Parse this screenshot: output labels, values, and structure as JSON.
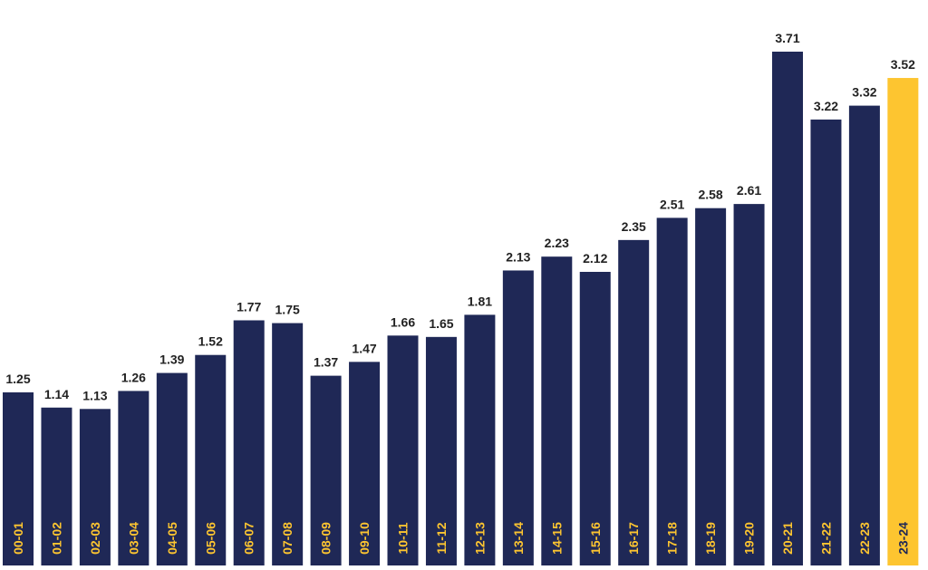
{
  "colors": {
    "bar": "#1f2856",
    "highlight": "#fdc530",
    "category_text_on_bar": "#fdc530",
    "category_text_on_highlight": "#1f2856",
    "value_text": "#222222"
  },
  "chart_data": {
    "type": "bar",
    "title": "",
    "xlabel": "",
    "ylabel": "",
    "categories": [
      "00-01",
      "01-02",
      "02-03",
      "03-04",
      "04-05",
      "05-06",
      "06-07",
      "07-08",
      "08-09",
      "09-10",
      "10-11",
      "11-12",
      "12-13",
      "13-14",
      "14-15",
      "15-16",
      "16-17",
      "17-18",
      "18-19",
      "19-20",
      "20-21",
      "21-22",
      "22-23",
      "23-24"
    ],
    "values": [
      1.25,
      1.14,
      1.13,
      1.26,
      1.39,
      1.52,
      1.77,
      1.75,
      1.37,
      1.47,
      1.66,
      1.65,
      1.81,
      2.13,
      2.23,
      2.12,
      2.35,
      2.51,
      2.58,
      2.61,
      3.71,
      3.22,
      3.32,
      3.52
    ],
    "value_labels": [
      "1.25",
      "1.14",
      "1.13",
      "1.26",
      "1.39",
      "1.52",
      "1.77",
      "1.75",
      "1.37",
      "1.47",
      "1.66",
      "1.65",
      "1.81",
      "2.13",
      "2.23",
      "2.12",
      "2.35",
      "2.51",
      "2.58",
      "2.61",
      "3.71",
      "3.22",
      "3.32",
      "3.52"
    ],
    "highlight_category": "23-24",
    "ylim": [
      0,
      3.71
    ],
    "grid": false,
    "legend": "none",
    "category_label_placement": "inside-bar-bottom-rotated"
  }
}
